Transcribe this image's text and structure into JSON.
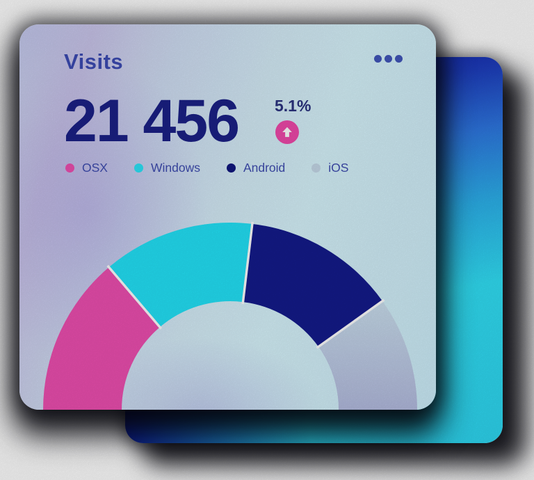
{
  "card": {
    "title": "Visits",
    "menu": {
      "icon": "ellipsis-icon",
      "dot_count": 3
    },
    "stat": {
      "value": "21 456",
      "delta": "5.1%",
      "delta_direction": "up"
    },
    "legend": [
      {
        "label": "OSX",
        "color": "#ee4fb1"
      },
      {
        "label": "Windows",
        "color": "#2be4f8"
      },
      {
        "label": "Android",
        "color": "#10177f"
      },
      {
        "label": "iOS",
        "color": "#c6d9e9"
      }
    ]
  },
  "chart_data": {
    "type": "pie",
    "variant": "semicircle-donut-gauge",
    "title": "Visits",
    "total_label": "21 456",
    "categories": [
      "OSX",
      "Windows",
      "Android",
      "iOS"
    ],
    "values_pct": [
      27.6,
      26.2,
      26.5,
      19.7
    ],
    "sweep_deg": [
      49.6,
      47.2,
      47.7,
      35.5
    ],
    "start_angle_deg": 180,
    "end_angle_deg": 0,
    "inner_radius_ratio": 0.58,
    "gap_color": "#ffffff",
    "legend_position": "top",
    "segments": [
      {
        "label": "OSX",
        "color": "#ee4fb1"
      },
      {
        "label": "Windows",
        "color": "#23e3f8"
      },
      {
        "label": "Android",
        "color": "#141b8c"
      },
      {
        "label": "iOS",
        "color": "#cbe0ef",
        "color2": "#b4bce0"
      }
    ]
  },
  "colors": {
    "title_text": "#3c4bb4",
    "value_text": "#1b2187",
    "delta_text": "#2b3380",
    "legend_text": "#3f4db1",
    "badge_pink": "#f049ab",
    "badge_arrow": "#ffffff",
    "menu_dots": "#4156bb",
    "back_card_top": "#0c1199",
    "back_card_bottom": "#31e0f6"
  }
}
